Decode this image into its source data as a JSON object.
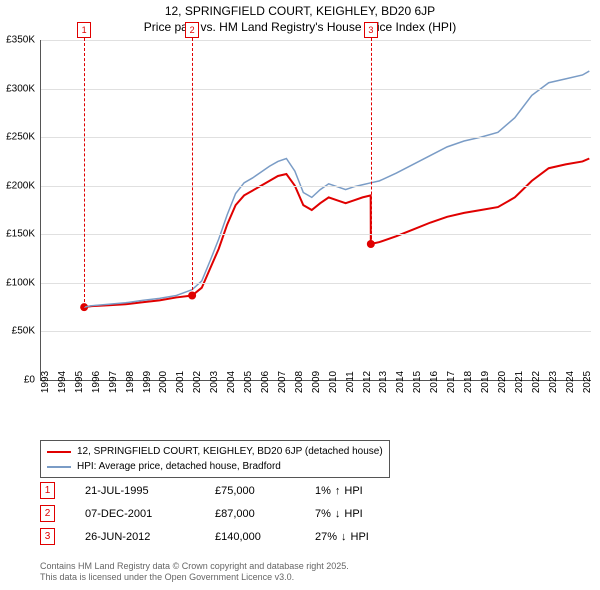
{
  "title_line1": "12, SPRINGFIELD COURT, KEIGHLEY, BD20 6JP",
  "title_line2": "Price paid vs. HM Land Registry's House Price Index (HPI)",
  "chart": {
    "type": "line",
    "background_color": "#ffffff",
    "grid_color": "#e0e0e0",
    "x_years": [
      1993,
      1994,
      1995,
      1996,
      1997,
      1998,
      1999,
      2000,
      2001,
      2002,
      2003,
      2004,
      2005,
      2006,
      2007,
      2008,
      2009,
      2010,
      2011,
      2012,
      2013,
      2014,
      2015,
      2016,
      2017,
      2018,
      2019,
      2020,
      2021,
      2022,
      2023,
      2024,
      2025
    ],
    "y_ticks": [
      0,
      50000,
      100000,
      150000,
      200000,
      250000,
      300000,
      350000
    ],
    "y_tick_labels": [
      "£0",
      "£50K",
      "£100K",
      "£150K",
      "£200K",
      "£250K",
      "£300K",
      "£350K"
    ],
    "ylim": [
      0,
      350000
    ],
    "xlim": [
      1993,
      2025.5
    ],
    "series": [
      {
        "name": "12, SPRINGFIELD COURT, KEIGHLEY, BD20 6JP (detached house)",
        "color": "#e00000",
        "line_width": 2,
        "points": [
          [
            1995.55,
            75000
          ],
          [
            1996,
            76000
          ],
          [
            1997,
            77000
          ],
          [
            1998,
            78000
          ],
          [
            1999,
            80000
          ],
          [
            2000,
            82000
          ],
          [
            2001,
            85000
          ],
          [
            2001.93,
            87000
          ],
          [
            2002.5,
            95000
          ],
          [
            2003,
            115000
          ],
          [
            2003.5,
            135000
          ],
          [
            2004,
            160000
          ],
          [
            2004.5,
            180000
          ],
          [
            2005,
            190000
          ],
          [
            2005.5,
            195000
          ],
          [
            2006,
            200000
          ],
          [
            2006.5,
            205000
          ],
          [
            2007,
            210000
          ],
          [
            2007.5,
            212000
          ],
          [
            2008,
            200000
          ],
          [
            2008.5,
            180000
          ],
          [
            2009,
            175000
          ],
          [
            2009.5,
            182000
          ],
          [
            2010,
            188000
          ],
          [
            2010.5,
            185000
          ],
          [
            2011,
            182000
          ],
          [
            2011.5,
            185000
          ],
          [
            2012,
            188000
          ],
          [
            2012.48,
            190000
          ],
          [
            2012.49,
            140000
          ],
          [
            2013,
            142000
          ],
          [
            2014,
            148000
          ],
          [
            2015,
            155000
          ],
          [
            2016,
            162000
          ],
          [
            2017,
            168000
          ],
          [
            2018,
            172000
          ],
          [
            2019,
            175000
          ],
          [
            2020,
            178000
          ],
          [
            2021,
            188000
          ],
          [
            2022,
            205000
          ],
          [
            2023,
            218000
          ],
          [
            2024,
            222000
          ],
          [
            2025,
            225000
          ],
          [
            2025.4,
            228000
          ]
        ],
        "dots": [
          [
            1995.55,
            75000
          ],
          [
            2001.93,
            87000
          ],
          [
            2012.49,
            140000
          ]
        ]
      },
      {
        "name": "HPI: Average price, detached house, Bradford",
        "color": "#7a9cc6",
        "line_width": 1.5,
        "points": [
          [
            1995.55,
            75000
          ],
          [
            1996,
            76500
          ],
          [
            1997,
            78000
          ],
          [
            1998,
            79500
          ],
          [
            1999,
            82000
          ],
          [
            2000,
            84000
          ],
          [
            2001,
            87000
          ],
          [
            2001.93,
            93000
          ],
          [
            2002.5,
            102000
          ],
          [
            2003,
            123000
          ],
          [
            2003.5,
            145000
          ],
          [
            2004,
            170000
          ],
          [
            2004.5,
            192000
          ],
          [
            2005,
            203000
          ],
          [
            2005.5,
            208000
          ],
          [
            2006,
            214000
          ],
          [
            2006.5,
            220000
          ],
          [
            2007,
            225000
          ],
          [
            2007.5,
            228000
          ],
          [
            2008,
            215000
          ],
          [
            2008.5,
            193000
          ],
          [
            2009,
            188000
          ],
          [
            2009.5,
            196000
          ],
          [
            2010,
            202000
          ],
          [
            2010.5,
            199000
          ],
          [
            2011,
            196000
          ],
          [
            2011.5,
            199000
          ],
          [
            2012,
            201000
          ],
          [
            2012.49,
            203000
          ],
          [
            2013,
            205000
          ],
          [
            2014,
            213000
          ],
          [
            2015,
            222000
          ],
          [
            2016,
            231000
          ],
          [
            2017,
            240000
          ],
          [
            2018,
            246000
          ],
          [
            2019,
            250000
          ],
          [
            2020,
            255000
          ],
          [
            2021,
            270000
          ],
          [
            2022,
            293000
          ],
          [
            2023,
            306000
          ],
          [
            2024,
            310000
          ],
          [
            2025,
            314000
          ],
          [
            2025.4,
            318000
          ]
        ]
      }
    ],
    "event_markers": [
      {
        "n": "1",
        "year": 1995.55,
        "drop_to": 75000
      },
      {
        "n": "2",
        "year": 2001.93,
        "drop_to": 87000
      },
      {
        "n": "3",
        "year": 2012.49,
        "drop_to": 140000
      }
    ]
  },
  "legend": [
    {
      "color": "#e00000",
      "label": "12, SPRINGFIELD COURT, KEIGHLEY, BD20 6JP (detached house)"
    },
    {
      "color": "#7a9cc6",
      "label": "HPI: Average price, detached house, Bradford"
    }
  ],
  "transactions": [
    {
      "n": "1",
      "date": "21-JUL-1995",
      "price": "£75,000",
      "delta": "1%",
      "arrow": "↑",
      "tail": "HPI"
    },
    {
      "n": "2",
      "date": "07-DEC-2001",
      "price": "£87,000",
      "delta": "7%",
      "arrow": "↓",
      "tail": "HPI"
    },
    {
      "n": "3",
      "date": "26-JUN-2012",
      "price": "£140,000",
      "delta": "27%",
      "arrow": "↓",
      "tail": "HPI"
    }
  ],
  "footer_line1": "Contains HM Land Registry data © Crown copyright and database right 2025.",
  "footer_line2": "This data is licensed under the Open Government Licence v3.0."
}
